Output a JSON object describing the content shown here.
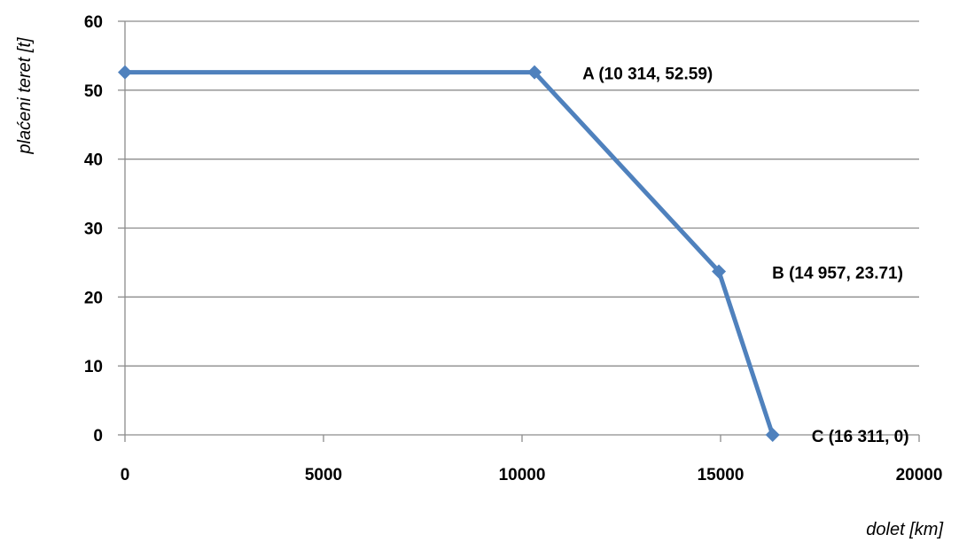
{
  "chart_data": {
    "type": "line",
    "xlabel": "dolet [km]",
    "ylabel": "plaćeni teret [t]",
    "xlim": [
      0,
      20000
    ],
    "ylim": [
      0,
      60
    ],
    "xticks": [
      0,
      5000,
      10000,
      15000,
      20000
    ],
    "yticks": [
      0,
      10,
      20,
      30,
      40,
      50,
      60
    ],
    "grid": "horizontal",
    "legend": "none",
    "series": [
      {
        "color": "#4f81bd",
        "marker": "diamond",
        "points": [
          {
            "x": 0,
            "y": 52.59
          },
          {
            "x": 10314,
            "y": 52.59
          },
          {
            "x": 14957,
            "y": 23.71
          },
          {
            "x": 16311,
            "y": 0
          }
        ]
      }
    ],
    "annotations": [
      {
        "text": "A (10 314, 52.59)",
        "x": 10314,
        "y": 52.59
      },
      {
        "text": "B (14 957, 23.71)",
        "x": 14957,
        "y": 23.71
      },
      {
        "text": "C (16 311, 0)",
        "x": 16311,
        "y": 0
      }
    ]
  }
}
